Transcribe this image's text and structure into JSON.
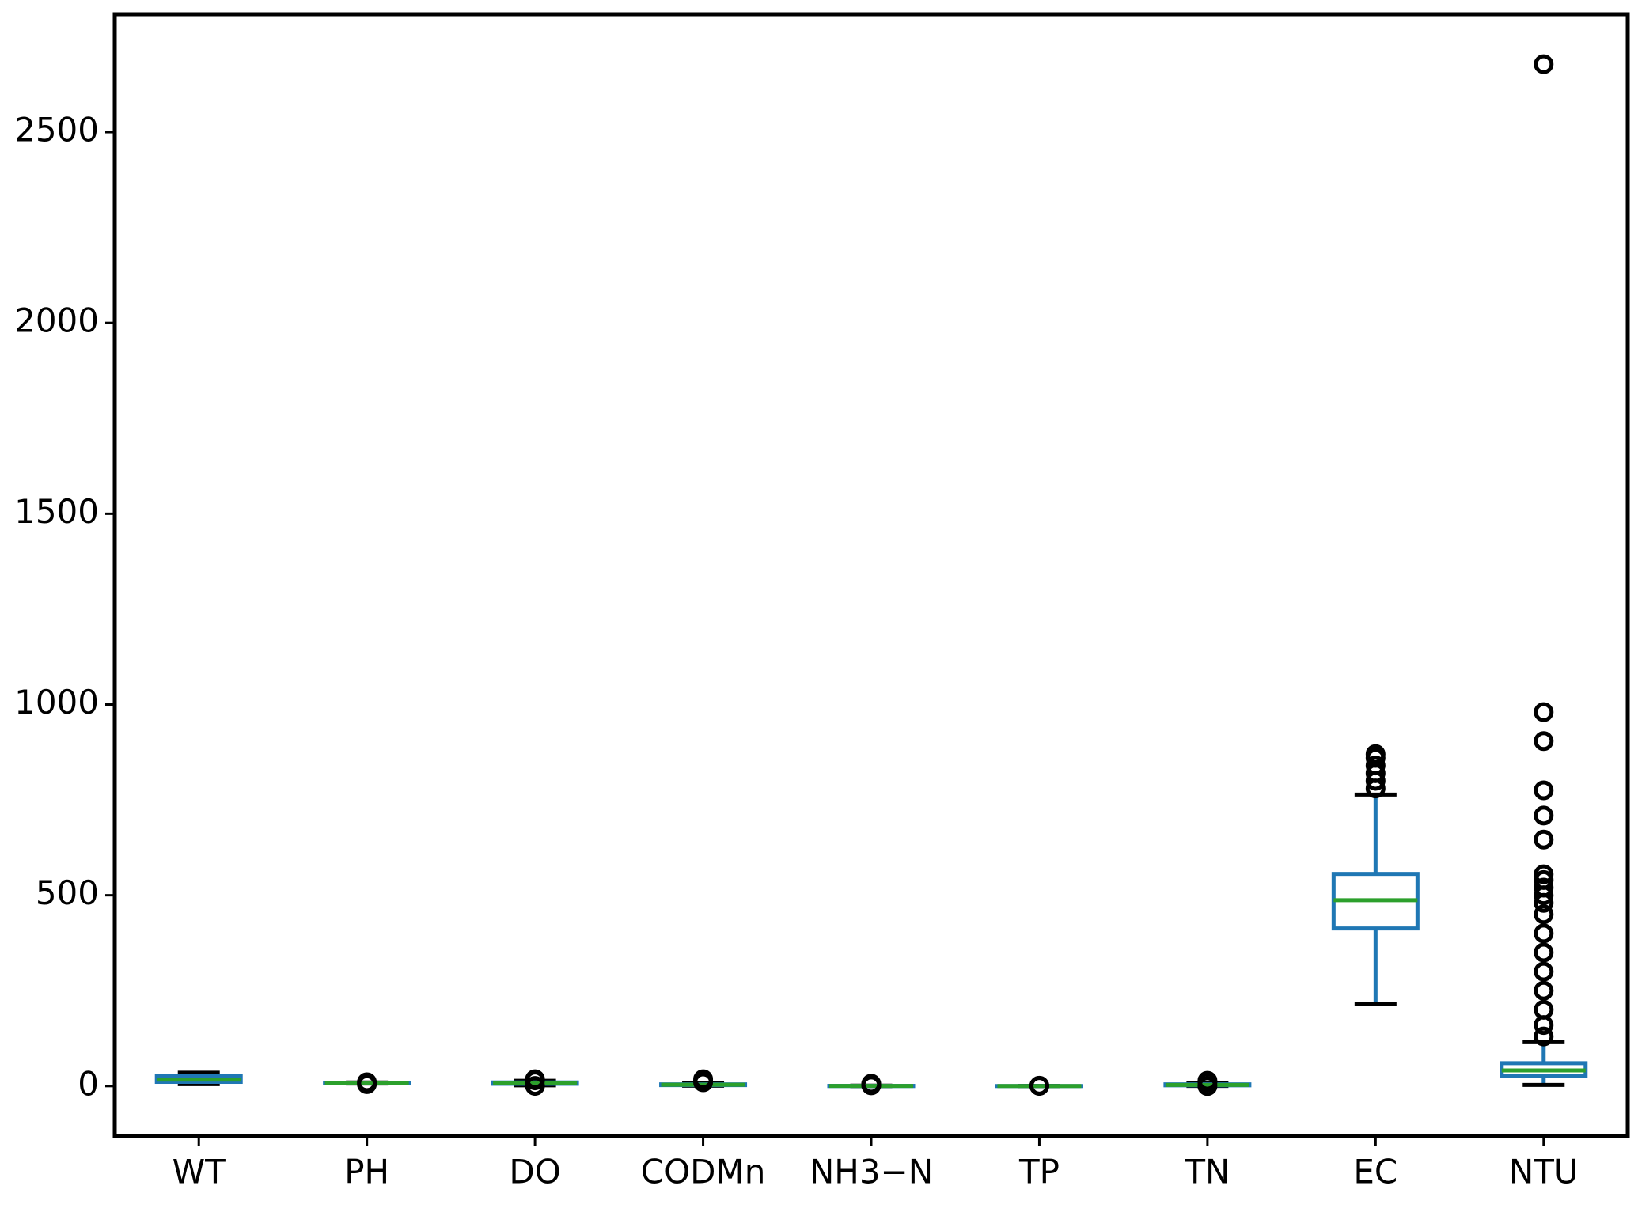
{
  "chart_data": {
    "type": "box",
    "categories": [
      "WT",
      "PH",
      "DO",
      "CODMn",
      "NH3−N",
      "TP",
      "TN",
      "EC",
      "NTU"
    ],
    "box_color": "#1f77b4",
    "median_color": "#2ca02c",
    "whisker_color": "#000000",
    "flier_color": "#000000",
    "boxes": [
      {
        "whislo": 5,
        "q1": 11,
        "med": 17,
        "q3": 27,
        "whishi": 35,
        "fliers": []
      },
      {
        "whislo": 6.5,
        "q1": 7.5,
        "med": 7.9,
        "q3": 8.3,
        "whishi": 9.4,
        "fliers": [
          5,
          10
        ]
      },
      {
        "whislo": 2,
        "q1": 6,
        "med": 8,
        "q3": 9.5,
        "whishi": 14,
        "fliers": [
          0.5,
          15,
          18
        ]
      },
      {
        "whislo": 1,
        "q1": 2.5,
        "med": 3.5,
        "q3": 4.5,
        "whishi": 8,
        "fliers": [
          10,
          14,
          18
        ]
      },
      {
        "whislo": 0,
        "q1": 0.1,
        "med": 0.3,
        "q3": 0.6,
        "whishi": 1.3,
        "fliers": [
          2,
          4,
          6
        ]
      },
      {
        "whislo": 0,
        "q1": 0.05,
        "med": 0.1,
        "q3": 0.15,
        "whishi": 0.3,
        "fliers": [
          0.5,
          1
        ]
      },
      {
        "whislo": 0.5,
        "q1": 2,
        "med": 3,
        "q3": 4.5,
        "whishi": 8,
        "fliers": [
          0,
          10,
          14
        ]
      },
      {
        "whislo": 216,
        "q1": 413,
        "med": 487,
        "q3": 556,
        "whishi": 764,
        "fliers": [
          780,
          800,
          820,
          840,
          860,
          870
        ]
      },
      {
        "whislo": 3,
        "q1": 27,
        "med": 41,
        "q3": 60,
        "whishi": 115,
        "fliers": [
          130,
          160,
          200,
          250,
          300,
          350,
          400,
          450,
          480,
          500,
          520,
          540,
          555,
          646,
          709,
          775,
          904,
          980,
          2678
        ]
      }
    ],
    "ylim": [
      -131,
      2809
    ],
    "yticks": [
      0,
      500,
      1000,
      1500,
      2000,
      2500
    ]
  }
}
